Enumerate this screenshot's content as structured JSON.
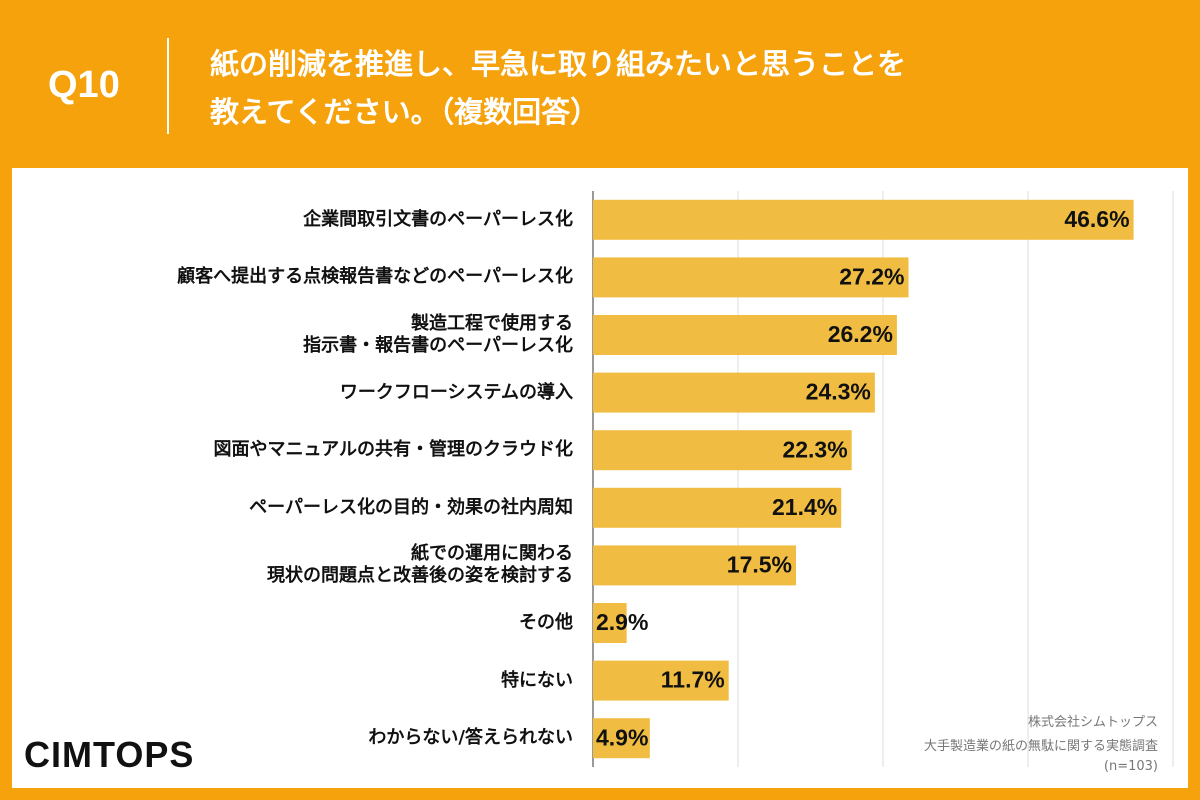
{
  "header": {
    "question": "Q10",
    "title": "紙の削減を推進し、早急に取り組みたいと思うことを\n教えてください。（複数回答）"
  },
  "chart_data": {
    "type": "bar",
    "orientation": "horizontal",
    "categories": [
      "企業間取引文書のペーパーレス化",
      "顧客へ提出する点検報告書などのペーパーレス化",
      "製造工程で使用する\n指示書・報告書のペーパーレス化",
      "ワークフローシステムの導入",
      "図面やマニュアルの共有・管理のクラウド化",
      "ペーパーレス化の目的・効果の社内周知",
      "紙での運用に関わる\n現状の問題点と改善後の姿を検討する",
      "その他",
      "特にない",
      "わからない/答えられない"
    ],
    "values": [
      46.6,
      27.2,
      26.2,
      24.3,
      22.3,
      21.4,
      17.5,
      2.9,
      11.7,
      4.9
    ],
    "value_labels": [
      "46.6%",
      "27.2%",
      "26.2%",
      "24.3%",
      "22.3%",
      "21.4%",
      "17.5%",
      "2.9%",
      "11.7%",
      "4.9%"
    ],
    "color": "#f0bd42",
    "xlim": [
      0,
      50
    ],
    "xticks": [
      0,
      12.5,
      25,
      37.5,
      50
    ],
    "tick_labels": false,
    "grid": true
  },
  "footer": {
    "company": "株式会社シムトップス",
    "survey": "大手製造業の紙の無駄に関する実態調査",
    "sample": "(n=103)",
    "logo": "CIMTOPS"
  }
}
